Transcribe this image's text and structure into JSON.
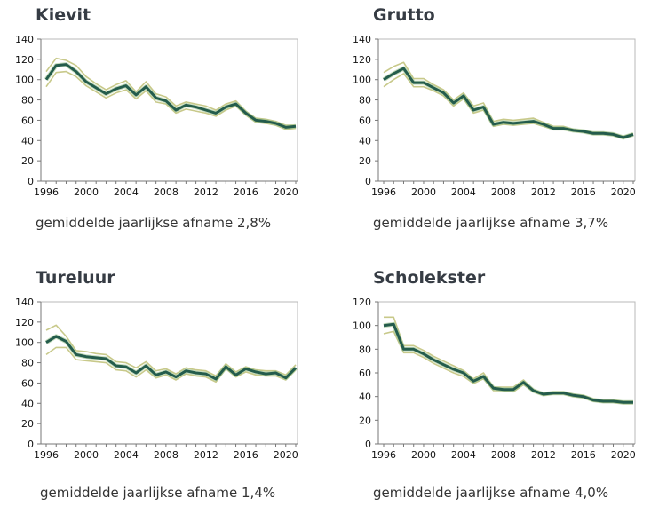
{
  "colors": {
    "main": "#245c4c",
    "band": "#c8c98a",
    "band_halo": "#9fc48f",
    "frame": "#b8b8b8"
  },
  "chart_data": [
    {
      "type": "line",
      "title": "Kievit",
      "caption": "gemiddelde jaarlijkse afname 2,8%",
      "x": [
        1996,
        1997,
        1998,
        1999,
        2000,
        2001,
        2002,
        2003,
        2004,
        2005,
        2006,
        2007,
        2008,
        2009,
        2010,
        2011,
        2012,
        2013,
        2014,
        2015,
        2016,
        2017,
        2018,
        2019,
        2020,
        2021
      ],
      "xticks": [
        1996,
        2000,
        2004,
        2008,
        2012,
        2016,
        2020
      ],
      "ylim": [
        0,
        140
      ],
      "yticks": [
        0,
        20,
        40,
        60,
        80,
        100,
        120,
        140
      ],
      "grid": false,
      "series": [
        {
          "role": "upper",
          "values": [
            108,
            121,
            119,
            114,
            103,
            96,
            90,
            95,
            99,
            88,
            98,
            86,
            83,
            74,
            78,
            76,
            74,
            70,
            76,
            79,
            69,
            62,
            61,
            59,
            55,
            55
          ]
        },
        {
          "role": "lower",
          "values": [
            93,
            107,
            108,
            103,
            94,
            88,
            82,
            87,
            90,
            81,
            89,
            78,
            76,
            67,
            71,
            69,
            67,
            64,
            70,
            74,
            65,
            58,
            57,
            55,
            51,
            52
          ]
        },
        {
          "role": "index",
          "values": [
            100,
            114,
            115,
            108,
            98,
            92,
            86,
            91,
            94,
            85,
            93,
            82,
            79,
            70,
            75,
            73,
            70,
            67,
            73,
            76,
            67,
            60,
            59,
            57,
            53,
            54
          ]
        }
      ]
    },
    {
      "type": "line",
      "title": "Grutto",
      "caption": "gemiddelde jaarlijkse afname 3,7%",
      "x": [
        1996,
        1997,
        1998,
        1999,
        2000,
        2001,
        2002,
        2003,
        2004,
        2005,
        2006,
        2007,
        2008,
        2009,
        2010,
        2011,
        2012,
        2013,
        2014,
        2015,
        2016,
        2017,
        2018,
        2019,
        2020,
        2021
      ],
      "xticks": [
        1996,
        2000,
        2004,
        2008,
        2012,
        2016,
        2020
      ],
      "ylim": [
        0,
        140
      ],
      "yticks": [
        0,
        20,
        40,
        60,
        80,
        100,
        120,
        140
      ],
      "grid": false,
      "series": [
        {
          "role": "upper",
          "values": [
            107,
            113,
            117,
            101,
            101,
            95,
            90,
            80,
            87,
            74,
            77,
            59,
            61,
            60,
            61,
            62,
            58,
            54,
            54,
            51,
            50,
            48,
            48,
            47,
            44,
            47
          ]
        },
        {
          "role": "lower",
          "values": [
            93,
            100,
            106,
            93,
            93,
            89,
            84,
            74,
            81,
            67,
            70,
            54,
            56,
            55,
            56,
            57,
            54,
            51,
            51,
            49,
            48,
            46,
            46,
            45,
            42,
            45
          ]
        },
        {
          "role": "index",
          "values": [
            100,
            106,
            111,
            97,
            97,
            92,
            87,
            77,
            84,
            70,
            73,
            56,
            58,
            57,
            58,
            59,
            56,
            52,
            52,
            50,
            49,
            47,
            47,
            46,
            43,
            46
          ]
        }
      ]
    },
    {
      "type": "line",
      "title": "Tureluur",
      "caption": "gemiddelde jaarlijkse afname 1,4%",
      "x": [
        1996,
        1997,
        1998,
        1999,
        2000,
        2001,
        2002,
        2003,
        2004,
        2005,
        2006,
        2007,
        2008,
        2009,
        2010,
        2011,
        2012,
        2013,
        2014,
        2015,
        2016,
        2017,
        2018,
        2019,
        2020,
        2021
      ],
      "xticks": [
        1996,
        2000,
        2004,
        2008,
        2012,
        2016,
        2020
      ],
      "ylim": [
        0,
        140
      ],
      "yticks": [
        0,
        20,
        40,
        60,
        80,
        100,
        120,
        140
      ],
      "grid": false,
      "series": [
        {
          "role": "upper",
          "values": [
            112,
            117,
            106,
            92,
            91,
            89,
            88,
            81,
            80,
            75,
            81,
            72,
            74,
            69,
            75,
            73,
            72,
            67,
            79,
            71,
            76,
            73,
            72,
            72,
            68,
            78
          ]
        },
        {
          "role": "lower",
          "values": [
            88,
            95,
            95,
            83,
            82,
            81,
            80,
            73,
            72,
            66,
            73,
            65,
            68,
            63,
            69,
            67,
            66,
            61,
            74,
            66,
            71,
            68,
            67,
            67,
            63,
            73
          ]
        },
        {
          "role": "index",
          "values": [
            100,
            106,
            101,
            88,
            86,
            85,
            84,
            77,
            76,
            70,
            77,
            68,
            71,
            66,
            72,
            70,
            69,
            64,
            76,
            68,
            74,
            71,
            69,
            70,
            65,
            75
          ]
        }
      ]
    },
    {
      "type": "line",
      "title": "Scholekster",
      "caption": "gemiddelde jaarlijkse afname 4,0%",
      "x": [
        1996,
        1997,
        1998,
        1999,
        2000,
        2001,
        2002,
        2003,
        2004,
        2005,
        2006,
        2007,
        2008,
        2009,
        2010,
        2011,
        2012,
        2013,
        2014,
        2015,
        2016,
        2017,
        2018,
        2019,
        2020,
        2021
      ],
      "xticks": [
        1996,
        2000,
        2004,
        2008,
        2012,
        2016,
        2020
      ],
      "ylim": [
        0,
        120
      ],
      "yticks": [
        0,
        20,
        40,
        60,
        80,
        100,
        120
      ],
      "grid": false,
      "series": [
        {
          "role": "upper",
          "values": [
            107,
            107,
            83,
            83,
            79,
            74,
            70,
            66,
            62,
            55,
            60,
            48,
            48,
            48,
            54,
            46,
            43,
            44,
            44,
            42,
            41,
            38,
            37,
            37,
            36,
            36
          ]
        },
        {
          "role": "lower",
          "values": [
            93,
            95,
            77,
            77,
            73,
            68,
            64,
            60,
            57,
            51,
            55,
            45,
            45,
            44,
            50,
            44,
            41,
            42,
            42,
            40,
            39,
            36,
            35,
            35,
            34,
            34
          ]
        },
        {
          "role": "index",
          "values": [
            100,
            101,
            80,
            80,
            76,
            71,
            67,
            63,
            60,
            53,
            57,
            47,
            46,
            46,
            52,
            45,
            42,
            43,
            43,
            41,
            40,
            37,
            36,
            36,
            35,
            35
          ]
        }
      ]
    }
  ]
}
